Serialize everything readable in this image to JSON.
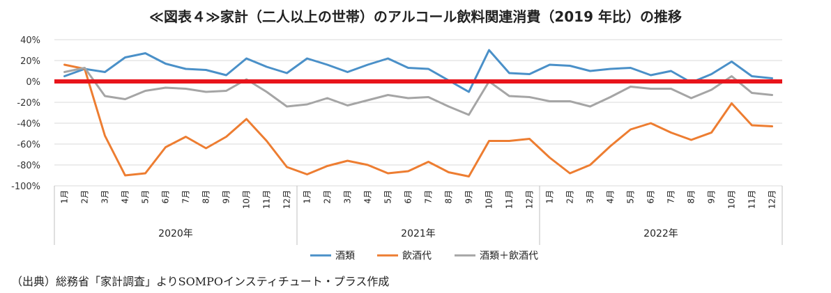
{
  "title": "≪図表４≫家計（二人以上の世帯）のアルコール飲料関連消費（2019 年比）の推移",
  "source": "（出典）総務省「家計調査」よりSOMPOインスティチュート・プラス作成",
  "chart_data": {
    "type": "line",
    "title": "≪図表４≫家計（二人以上の世帯）のアルコール飲料関連消費（2019 年比）の推移",
    "ylim": [
      -100,
      40
    ],
    "yticks": [
      "40%",
      "20%",
      "0%",
      "-20%",
      "-40%",
      "-60%",
      "-80%",
      "-100%"
    ],
    "ytick_values": [
      40,
      20,
      0,
      -20,
      -40,
      -60,
      -80,
      -100
    ],
    "grid": "horizontal",
    "reference_line": {
      "y": 0,
      "color": "#e8141b"
    },
    "categories": [
      "1月",
      "2月",
      "3月",
      "4月",
      "5月",
      "6月",
      "7月",
      "8月",
      "9月",
      "10月",
      "11月",
      "12月",
      "1月",
      "2月",
      "3月",
      "4月",
      "5月",
      "6月",
      "7月",
      "8月",
      "9月",
      "10月",
      "11月",
      "12月",
      "1月",
      "2月",
      "3月",
      "4月",
      "5月",
      "6月",
      "7月",
      "8月",
      "9月",
      "10月",
      "11月",
      "12月"
    ],
    "groups": [
      "2020年",
      "2021年",
      "2022年"
    ],
    "legend_position": "bottom",
    "series": [
      {
        "name": "酒類",
        "color": "#4a90c8",
        "values": [
          5,
          12,
          9,
          23,
          27,
          17,
          12,
          11,
          6,
          22,
          14,
          8,
          22,
          16,
          9,
          16,
          22,
          13,
          12,
          1,
          -10,
          30,
          8,
          7,
          16,
          15,
          10,
          12,
          13,
          6,
          10,
          -1,
          7,
          19,
          5,
          3
        ]
      },
      {
        "name": "飲酒代",
        "color": "#ed7d31",
        "values": [
          16,
          12,
          -52,
          -90,
          -88,
          -63,
          -53,
          -64,
          -53,
          -36,
          -57,
          -82,
          -89,
          -81,
          -76,
          -80,
          -88,
          -86,
          -77,
          -87,
          -91,
          -57,
          -57,
          -55,
          -73,
          -88,
          -80,
          -62,
          -46,
          -40,
          -49,
          -56,
          -49,
          -21,
          -42,
          -43
        ]
      },
      {
        "name": "酒類＋飲酒代",
        "color": "#a5a5a5",
        "values": [
          9,
          13,
          -14,
          -17,
          -9,
          -6,
          -7,
          -10,
          -9,
          2,
          -10,
          -24,
          -22,
          -16,
          -23,
          -18,
          -13,
          -16,
          -15,
          -24,
          -32,
          0,
          -14,
          -15,
          -19,
          -19,
          -24,
          -15,
          -5,
          -7,
          -7,
          -16,
          -8,
          5,
          -11,
          -13
        ]
      }
    ]
  }
}
